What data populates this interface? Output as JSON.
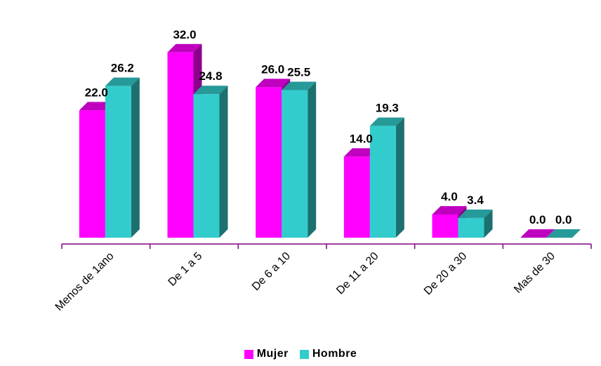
{
  "chart_data": {
    "type": "bar",
    "categories": [
      "Menos de 1ano",
      "De 1 a 5",
      "De 6 a 10",
      "De 11 a 20",
      "De 20 a 30",
      "Mas de 30"
    ],
    "series": [
      {
        "name": "Mujer",
        "values": [
          22.0,
          32.0,
          26.0,
          14.0,
          4.0,
          0.0
        ],
        "labels": [
          "22.0",
          "32.0",
          "26.0",
          "14.0",
          "4.0",
          "0.0"
        ],
        "color": "#FF00FF"
      },
      {
        "name": "Hombre",
        "values": [
          26.2,
          24.8,
          25.5,
          19.3,
          3.4,
          0.0
        ],
        "labels": [
          "26.2",
          "24.8",
          "25.5",
          "19.3",
          "3.4",
          "0.0"
        ],
        "color": "#33CCCC"
      }
    ],
    "title": "",
    "xlabel": "",
    "ylabel": "",
    "ylim": [
      0,
      35
    ],
    "legend_position": "bottom",
    "grid": false,
    "style": "3d-bar"
  }
}
